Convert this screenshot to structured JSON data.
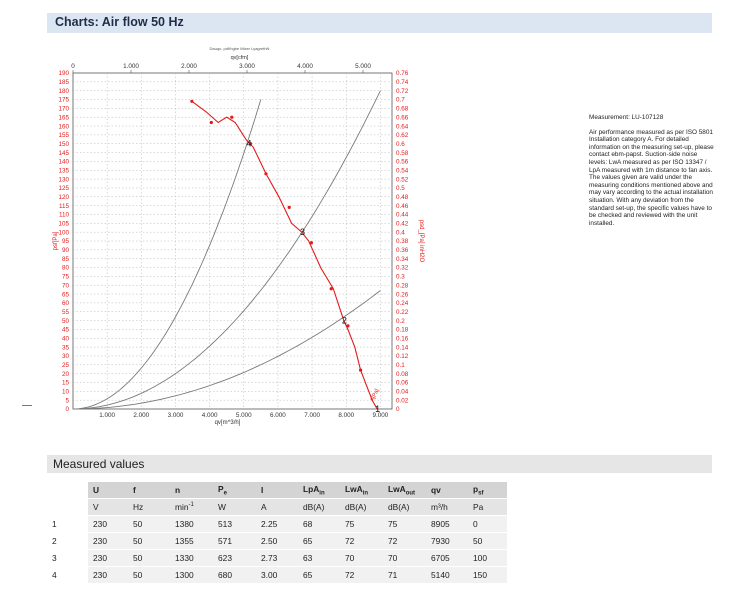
{
  "header": {
    "title": "Charts: Air flow 50 Hz"
  },
  "chart_data": {
    "type": "line",
    "tiny_caption": "Dauqu. pdf/hgbe Mixer LyagrethN",
    "top_axis": {
      "label": "qv[cfm]",
      "range": [
        0,
        5500
      ],
      "ticks": [
        "0",
        "1.000",
        "2.000",
        "3.000",
        "4.000",
        "5.000"
      ],
      "tick_values": [
        0,
        1000,
        2000,
        3000,
        4000,
        5000
      ]
    },
    "bottom_axis": {
      "label": "qv[m^3/h]",
      "range": [
        0,
        9340
      ],
      "ticks": [
        "1.000",
        "2.000",
        "3.000",
        "4.000",
        "5.000",
        "6.000",
        "7.000",
        "8.000",
        "9.000"
      ],
      "tick_values": [
        1000,
        2000,
        3000,
        4000,
        5000,
        6000,
        7000,
        8000,
        9000
      ]
    },
    "left_axis": {
      "label": "psf[Pa]",
      "range": [
        0,
        190
      ],
      "ticks": [
        "0",
        "5",
        "10",
        "15",
        "20",
        "25",
        "30",
        "35",
        "40",
        "45",
        "50",
        "55",
        "60",
        "65",
        "70",
        "75",
        "80",
        "85",
        "90",
        "95",
        "100",
        "105",
        "110",
        "115",
        "120",
        "125",
        "130",
        "135",
        "140",
        "145",
        "150",
        "155",
        "160",
        "165",
        "170",
        "175",
        "180",
        "185",
        "190"
      ]
    },
    "right_axis": {
      "label": "psd_[Pa] inH2O",
      "range": [
        0,
        0.76
      ],
      "ticks": [
        "0",
        "0.02",
        "0.04",
        "0.06",
        "0.08",
        "0.1",
        "0.12",
        "0.14",
        "0.16",
        "0.18",
        "0.2",
        "0.22",
        "0.24",
        "0.26",
        "0.28",
        "0.3",
        "0.32",
        "0.34",
        "0.36",
        "0.38",
        "0.4",
        "0.42",
        "0.44",
        "0.46",
        "0.48",
        "0.5",
        "0.52",
        "0.54",
        "0.56",
        "0.58",
        "0.6",
        "0.62",
        "0.64",
        "0.66",
        "0.68",
        "0.7",
        "0.72",
        "0.74",
        "0.76"
      ]
    },
    "grid": true,
    "series": [
      {
        "name": "A",
        "color": "#e41a1a",
        "x": [
          3480,
          3900,
          4250,
          4500,
          4750,
          5080,
          5280,
          5650,
          6030,
          6400,
          6700,
          6900,
          7250,
          7620,
          7930,
          8050,
          8250,
          8420,
          8600,
          8760,
          8905
        ],
        "y": [
          174,
          168,
          162,
          165,
          162,
          152,
          148,
          133,
          120,
          105,
          100,
          95,
          80,
          68,
          50,
          45,
          35,
          22,
          13,
          5,
          0
        ],
        "markers_x": [
          3480,
          4050,
          4650,
          5200,
          5650,
          6330,
          6980,
          7560,
          8050,
          8420
        ],
        "markers_y": [
          174,
          162,
          165,
          150,
          133,
          114,
          94,
          68,
          47,
          22
        ]
      }
    ],
    "system_curves": [
      {
        "color": "#7a7a7a",
        "x": [
          0,
          5500
        ],
        "y_at_end": 175
      },
      {
        "color": "#7a7a7a",
        "x": [
          0,
          9000
        ],
        "y_at_end": 180
      },
      {
        "color": "#7a7a7a",
        "x": [
          0,
          9000
        ],
        "y_at_end": 67
      }
    ],
    "point_labels": [
      {
        "text": "1",
        "x": 8905,
        "y": 0
      },
      {
        "text": "2",
        "x": 7930,
        "y": 50
      },
      {
        "text": "3",
        "x": 6705,
        "y": 100
      },
      {
        "text": "4",
        "x": 5140,
        "y": 150
      }
    ],
    "curve_label": "A[Pa]"
  },
  "side_note": {
    "measurement": "Measurement: LU-107128",
    "body": "Air performance measured as per ISO 5801 Installation category A. For detailed information on the measuring set-up, please contact ebm-papst. Suction-side noise levels: LwA measured as per ISO 13347 / LpA measured with 1m distance to fan axis. The values given are valid under the measuring conditions mentioned above and may vary according to the actual installation situation. With any deviation from the standard set-up, the specific values have to be checked and reviewed with the unit installed."
  },
  "measured": {
    "title": "Measured values",
    "headers": [
      "U",
      "f",
      "n",
      "P",
      "I",
      "LpA",
      "LwA",
      "LwA",
      "qv",
      "p"
    ],
    "header_subs": [
      "",
      "",
      "",
      "e",
      "",
      "in",
      "in",
      "out",
      "",
      "sf"
    ],
    "units": [
      "V",
      "Hz",
      "min",
      "W",
      "A",
      "dB(A)",
      "dB(A)",
      "dB(A)",
      "m³/h",
      "Pa"
    ],
    "unit_sups": [
      "",
      "",
      "-1",
      "",
      "",
      "",
      "",
      "",
      "",
      ""
    ],
    "rows": [
      [
        "1",
        "230",
        "50",
        "1380",
        "513",
        "2.25",
        "68",
        "75",
        "75",
        "8905",
        "0"
      ],
      [
        "2",
        "230",
        "50",
        "1355",
        "571",
        "2.50",
        "65",
        "72",
        "72",
        "7930",
        "50"
      ],
      [
        "3",
        "230",
        "50",
        "1330",
        "623",
        "2.73",
        "63",
        "70",
        "70",
        "6705",
        "100"
      ],
      [
        "4",
        "230",
        "50",
        "1300",
        "680",
        "3.00",
        "65",
        "72",
        "71",
        "5140",
        "150"
      ]
    ]
  }
}
